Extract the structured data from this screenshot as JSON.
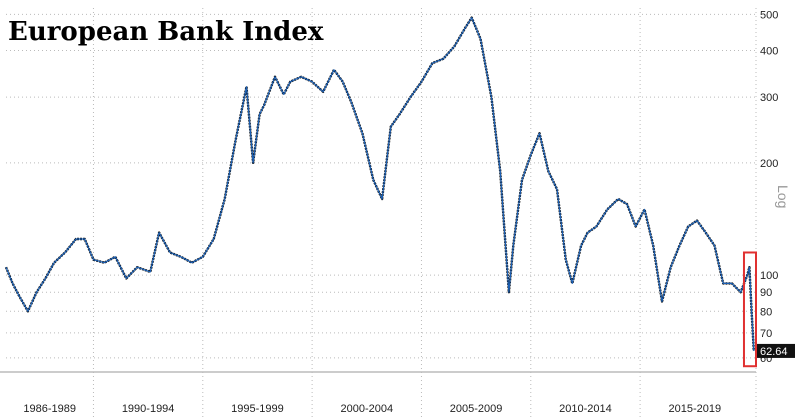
{
  "chart_data": {
    "type": "line",
    "title": "European Bank Index",
    "scale_label": "Log",
    "y_scale": "log",
    "ylim": [
      55,
      520
    ],
    "y_ticks": [
      60,
      70,
      80,
      90,
      100,
      200,
      300,
      400,
      500
    ],
    "x_range": [
      1986.0,
      2020.3
    ],
    "x_periods": [
      {
        "label": "1986-1989",
        "start": 1986,
        "end": 1990
      },
      {
        "label": "1990-1994",
        "start": 1990,
        "end": 1995
      },
      {
        "label": "1995-1999",
        "start": 1995,
        "end": 2000
      },
      {
        "label": "2000-2004",
        "start": 2000,
        "end": 2005
      },
      {
        "label": "2005-2009",
        "start": 2005,
        "end": 2010
      },
      {
        "label": "2010-2014",
        "start": 2010,
        "end": 2015
      },
      {
        "label": "2015-2019",
        "start": 2015,
        "end": 2020
      }
    ],
    "grid": true,
    "series": [
      {
        "color": "#1a5fb4",
        "x": [
          1986.0,
          1986.3,
          1986.6,
          1987.0,
          1987.4,
          1987.8,
          1988.2,
          1988.7,
          1989.2,
          1989.6,
          1990.0,
          1990.5,
          1991.0,
          1991.5,
          1992.0,
          1992.6,
          1993.0,
          1993.5,
          1994.0,
          1994.5,
          1995.0,
          1995.5,
          1996.0,
          1996.5,
          1997.0,
          1997.3,
          1997.6,
          1997.8,
          1998.3,
          1998.7,
          1999.0,
          1999.5,
          2000.0,
          2000.5,
          2001.0,
          2001.4,
          2001.8,
          2002.3,
          2002.8,
          2003.2,
          2003.6,
          2004.0,
          2004.5,
          2005.0,
          2005.5,
          2006.0,
          2006.5,
          2007.0,
          2007.3,
          2007.7,
          2008.2,
          2008.6,
          2009.0,
          2009.2,
          2009.6,
          2010.0,
          2010.4,
          2010.8,
          2011.2,
          2011.6,
          2011.9,
          2012.3,
          2012.6,
          2013.0,
          2013.5,
          2014.0,
          2014.4,
          2014.8,
          2015.2,
          2015.6,
          2016.0,
          2016.4,
          2016.8,
          2017.2,
          2017.6,
          2018.0,
          2018.4,
          2018.8,
          2019.2,
          2019.6,
          2019.9,
          2020.0,
          2020.1,
          2020.2
        ],
        "values": [
          105,
          95,
          88,
          80,
          90,
          98,
          108,
          115,
          125,
          125,
          110,
          108,
          112,
          98,
          105,
          102,
          130,
          115,
          112,
          108,
          112,
          125,
          160,
          230,
          320,
          200,
          270,
          285,
          340,
          305,
          330,
          340,
          330,
          310,
          355,
          330,
          290,
          240,
          180,
          160,
          250,
          270,
          300,
          330,
          370,
          380,
          410,
          460,
          490,
          430,
          300,
          190,
          90,
          120,
          180,
          210,
          240,
          190,
          170,
          110,
          95,
          120,
          130,
          135,
          150,
          160,
          155,
          135,
          150,
          120,
          85,
          105,
          120,
          135,
          140,
          130,
          120,
          95,
          95,
          90,
          100,
          105,
          80,
          62.64
        ]
      }
    ],
    "last_value_label": "62.64",
    "highlight_box": {
      "x_start": 2019.75,
      "x_end": 2020.3,
      "y_low": 57,
      "y_high": 115,
      "color": "#e03131"
    }
  }
}
